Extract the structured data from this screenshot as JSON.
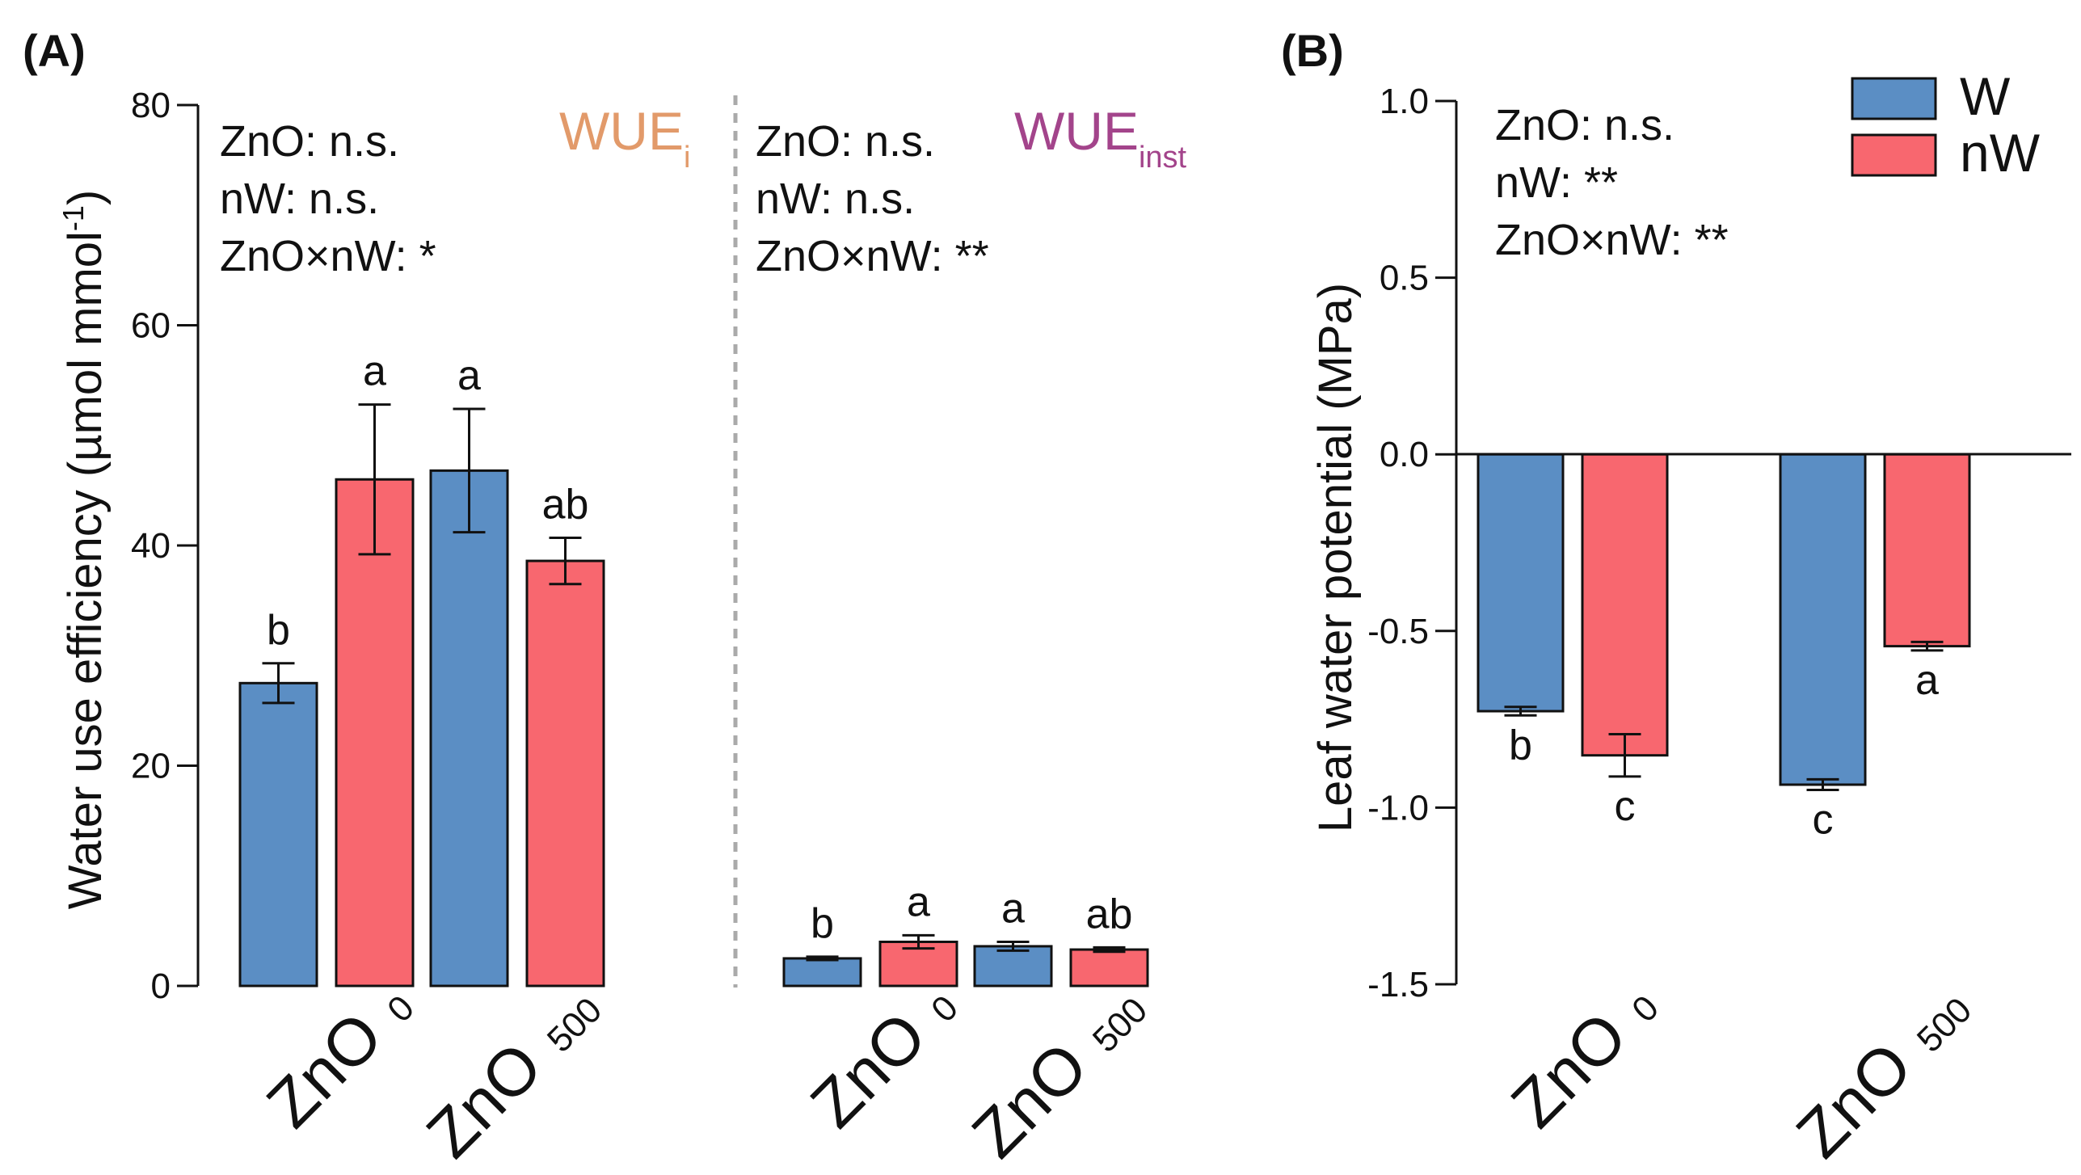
{
  "colors": {
    "W": "#5b8ec4",
    "nW": "#f8676f",
    "WUEi": "#e29a6a",
    "WUEinst": "#a3448b",
    "divider": "#aaaaaa"
  },
  "legend": {
    "items": [
      "W",
      "nW"
    ]
  },
  "panelA": {
    "label": "(A)",
    "ylabel_main": "Water use efficiency (µmol mmol",
    "ylabel_sup": "-1",
    "ylabel_close": ")",
    "ylim": [
      0,
      80
    ],
    "yticks": [
      0,
      20,
      40,
      60,
      80
    ],
    "ytick_labels": [
      "0",
      "20",
      "40",
      "60",
      "80"
    ]
  },
  "panelB": {
    "label": "(B)",
    "ylabel": "Leaf water potential (MPa)",
    "ylim": [
      -1.5,
      1.0
    ],
    "yticks": [
      1.0,
      0.5,
      0.0,
      -0.5,
      -1.0,
      -1.5
    ],
    "ytick_labels": [
      "1.0",
      "0.5",
      "0.0",
      "-0.5",
      "-1.0",
      "-1.5"
    ],
    "stats": [
      "ZnO: n.s.",
      "nW: **",
      "ZnO×nW: **"
    ]
  },
  "chart_data": [
    {
      "type": "bar",
      "title_main": "WUE",
      "title_sub": "i",
      "categories": [
        "ZnO_0",
        "ZnO_500"
      ],
      "category_labels": [
        {
          "main": "ZnO",
          "sub": "0"
        },
        {
          "main": "ZnO",
          "sub": "500"
        }
      ],
      "series": [
        {
          "name": "W",
          "values": [
            27.5,
            46.8
          ],
          "errors": [
            1.8,
            5.6
          ],
          "letters": [
            "b",
            "a"
          ]
        },
        {
          "name": "nW",
          "values": [
            46.0,
            38.6
          ],
          "errors": [
            6.8,
            2.1
          ],
          "letters": [
            "a",
            "ab"
          ]
        }
      ],
      "ylabel": "Water use efficiency (µmol mmol-1)",
      "ylim": [
        0,
        80
      ],
      "stats": [
        "ZnO: n.s.",
        "nW: n.s.",
        "ZnO×nW: *"
      ]
    },
    {
      "type": "bar",
      "title_main": "WUE",
      "title_sub": "inst",
      "categories": [
        "ZnO_0",
        "ZnO_500"
      ],
      "category_labels": [
        {
          "main": "ZnO",
          "sub": "0"
        },
        {
          "main": "ZnO",
          "sub": "500"
        }
      ],
      "series": [
        {
          "name": "W",
          "values": [
            2.5,
            3.6
          ],
          "errors": [
            0.15,
            0.4
          ],
          "letters": [
            "b",
            "a"
          ]
        },
        {
          "name": "nW",
          "values": [
            4.0,
            3.3
          ],
          "errors": [
            0.6,
            0.2
          ],
          "letters": [
            "a",
            "ab"
          ]
        }
      ],
      "ylabel": "Water use efficiency (µmol mmol-1)",
      "ylim": [
        0,
        80
      ],
      "stats": [
        "ZnO: n.s.",
        "nW: n.s.",
        "ZnO×nW: **"
      ]
    },
    {
      "type": "bar",
      "title": "Leaf water potential",
      "categories": [
        "ZnO_0",
        "ZnO_500"
      ],
      "category_labels": [
        {
          "main": "ZnO",
          "sub": "0"
        },
        {
          "main": "ZnO",
          "sub": "500"
        }
      ],
      "series": [
        {
          "name": "W",
          "values": [
            -0.727,
            -0.935
          ],
          "errors": [
            0.012,
            0.015
          ],
          "letters": [
            "b",
            "c"
          ]
        },
        {
          "name": "nW",
          "values": [
            -0.852,
            -0.543
          ],
          "errors": [
            0.06,
            0.012
          ],
          "letters": [
            "c",
            "a"
          ]
        }
      ],
      "ylabel": "Leaf water potential (MPa)",
      "ylim": [
        -1.5,
        1.0
      ],
      "stats": [
        "ZnO: n.s.",
        "nW: **",
        "ZnO×nW: **"
      ]
    }
  ]
}
